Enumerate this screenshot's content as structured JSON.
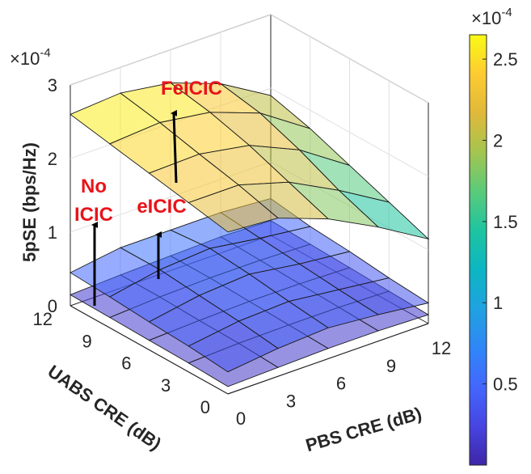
{
  "chart_data": {
    "type": "surface3d",
    "title": "",
    "zlabel": "5pSE (bps/Hz)",
    "xlabel": "UABS CRE (dB)",
    "ylabel": "PBS CRE (dB)",
    "z_exponent": "×10",
    "z_exponent_power": "-4",
    "zlim": [
      0,
      3
    ],
    "z_ticks": [
      "0",
      "1",
      "2",
      "3"
    ],
    "x_ticks": [
      "0",
      "3",
      "6",
      "9",
      "12"
    ],
    "y_ticks": [
      "0",
      "3",
      "6",
      "9",
      "12"
    ],
    "grid": true,
    "colorbar": {
      "exponent": "×10",
      "exponent_power": "-4",
      "min": 0,
      "max": 2.65,
      "ticks": [
        "0.5",
        "1",
        "1.5",
        "2",
        "2.5"
      ],
      "colormap": [
        "#3e26a8",
        "#4745e2",
        "#4367fd",
        "#2f87f7",
        "#1fa2e0",
        "#0cb6c2",
        "#1ec4a0",
        "#5acb7a",
        "#a4c54f",
        "#e0b93b",
        "#fdcb31",
        "#f9fb15"
      ]
    },
    "series": [
      {
        "name": "FeICIC",
        "grid_size": 5,
        "z_note": "rows: UABS CRE 12,9,6,3,0; cols: PBS CRE 0,3,6,9,12 (units 1e-4)",
        "z": [
          [
            2.6,
            2.65,
            2.55,
            2.3,
            1.9
          ],
          [
            2.5,
            2.55,
            2.45,
            2.2,
            1.75
          ],
          [
            2.4,
            2.42,
            2.3,
            2.0,
            1.55
          ],
          [
            2.3,
            2.3,
            2.1,
            1.75,
            1.35
          ],
          [
            2.2,
            2.15,
            1.9,
            1.55,
            1.15
          ]
        ]
      },
      {
        "name": "eICIC",
        "grid_size": 5,
        "z": [
          [
            0.45,
            0.55,
            0.55,
            0.55,
            0.5
          ],
          [
            0.42,
            0.55,
            0.6,
            0.5,
            0.42
          ],
          [
            0.38,
            0.5,
            0.55,
            0.45,
            0.38
          ],
          [
            0.35,
            0.45,
            0.48,
            0.4,
            0.32
          ],
          [
            0.3,
            0.38,
            0.42,
            0.36,
            0.28
          ]
        ]
      },
      {
        "name": "No ICIC",
        "grid_size": 5,
        "z": [
          [
            0.15,
            0.18,
            0.2,
            0.22,
            0.2
          ],
          [
            0.14,
            0.18,
            0.2,
            0.2,
            0.18
          ],
          [
            0.13,
            0.16,
            0.18,
            0.18,
            0.16
          ],
          [
            0.12,
            0.15,
            0.16,
            0.16,
            0.14
          ],
          [
            0.1,
            0.12,
            0.14,
            0.14,
            0.12
          ]
        ]
      }
    ],
    "annotations": [
      {
        "text": "FeICIC",
        "target": "FeICIC"
      },
      {
        "text": "eICIC",
        "target": "eICIC"
      },
      {
        "text": "No",
        "target": "No ICIC"
      },
      {
        "text": "ICIC",
        "target": "No ICIC"
      }
    ],
    "annotation_color": "#e8141b"
  }
}
